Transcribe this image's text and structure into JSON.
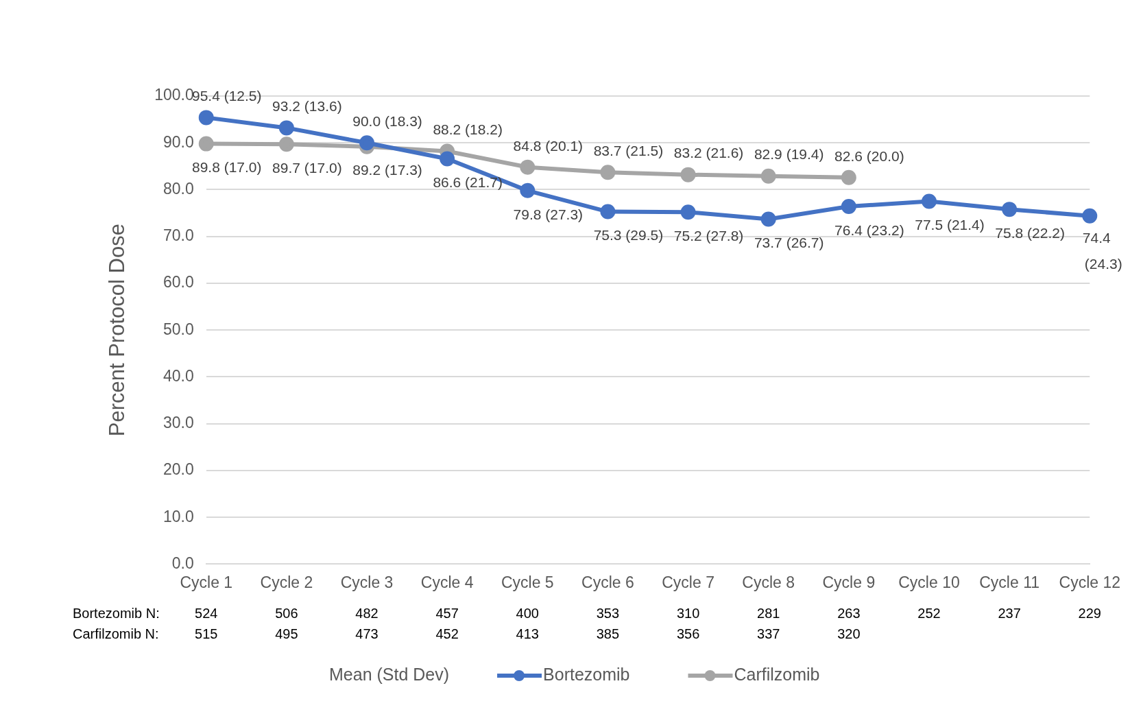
{
  "chart_data": {
    "type": "line",
    "ylabel": "Percent Protocol Dose",
    "legend_title": "Mean (Std Dev)",
    "legend": "bottom",
    "grid": "y",
    "marker": "circle",
    "line_style": "solid",
    "categories": [
      "Cycle 1",
      "Cycle 2",
      "Cycle 3",
      "Cycle 4",
      "Cycle 5",
      "Cycle 6",
      "Cycle 7",
      "Cycle 8",
      "Cycle 9",
      "Cycle 10",
      "Cycle 11",
      "Cycle 12"
    ],
    "ylim": [
      0,
      100
    ],
    "yticks": [
      {
        "value": 0,
        "label": "0.0"
      },
      {
        "value": 10,
        "label": "10.0"
      },
      {
        "value": 20,
        "label": "20.0"
      },
      {
        "value": 30,
        "label": "30.0"
      },
      {
        "value": 40,
        "label": "40.0"
      },
      {
        "value": 50,
        "label": "50.0"
      },
      {
        "value": 60,
        "label": "60.0"
      },
      {
        "value": 70,
        "label": "70.0"
      },
      {
        "value": 80,
        "label": "80.0"
      },
      {
        "value": 90,
        "label": "90.0"
      },
      {
        "value": 100,
        "label": "100.0"
      }
    ],
    "series": [
      {
        "name": "Bortezomib",
        "color": "#4472c4",
        "values": [
          95.4,
          93.2,
          90.0,
          86.6,
          79.8,
          75.3,
          75.2,
          73.7,
          76.4,
          77.5,
          75.8,
          74.4
        ],
        "value_labels": [
          "95.4 (12.5)",
          "93.2 (13.6)",
          "90.0 (18.3)",
          "86.6 (21.7)",
          "79.8 (27.3)",
          "75.3 (29.5)",
          "75.2 (27.8)",
          "73.7 (26.7)",
          "76.4 (23.2)",
          "77.5 (21.4)",
          "75.8 (22.2)",
          "74.4 (24.3)"
        ]
      },
      {
        "name": "Carfilzomib",
        "color": "#a5a5a5",
        "values": [
          89.8,
          89.7,
          89.2,
          88.2,
          84.8,
          83.7,
          83.2,
          82.9,
          82.6,
          null,
          null,
          null
        ],
        "value_labels": [
          "89.8 (17.0)",
          "89.7 (17.0)",
          "89.2 (17.3)",
          "88.2 (18.2)",
          "84.8 (20.1)",
          "83.7 (21.5)",
          "83.2 (21.6)",
          "82.9 (19.4)",
          "82.6 (20.0)",
          null,
          null,
          null
        ]
      }
    ],
    "annotations": [
      "Bortezomib N:",
      "524",
      "506",
      "482",
      "457",
      "400",
      "353",
      "310",
      "281",
      "263",
      "252",
      "237",
      "229",
      "Carfilzomib N:",
      "515",
      "495",
      "473",
      "452",
      "413",
      "385",
      "356",
      "337",
      "320"
    ]
  }
}
